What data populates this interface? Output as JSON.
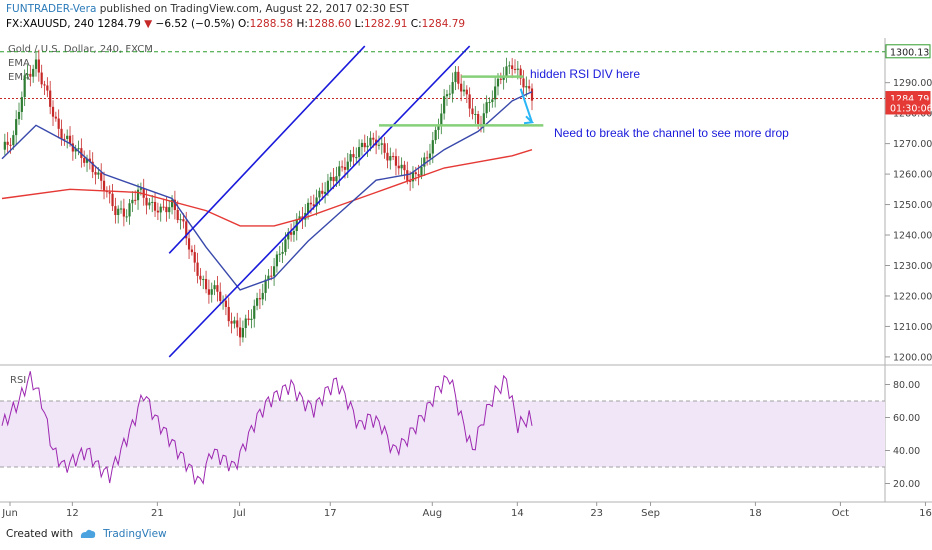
{
  "header": {
    "author": "FUNTRADER-Vera",
    "published_prefix": "published on TradingView.com, August 22, 2017 02:30 EST",
    "symbol": "FX:XAUUSD, 240",
    "last": "1284.79",
    "arrow": "▼",
    "change": "−6.52 (−0.5%)",
    "o_label": "O:",
    "o": "1288.58",
    "h_label": "H:",
    "h": "1288.60",
    "l_label": "L:",
    "l": "1282.91",
    "c_label": "C:",
    "c": "1284.79"
  },
  "legend": {
    "title": "Gold / U.S. Dollar, 240, FXCM",
    "ema1": "EMA",
    "ema2": "EMA",
    "rsi": "RSI"
  },
  "annotations": {
    "hidden_rsi": "hidden RSI DIV here",
    "break_channel": "Need to break the channel to see more drop"
  },
  "price_labels": {
    "high_line": "1300.13",
    "last": "1284.79",
    "countdown": "01:30:06"
  },
  "footer": {
    "created_with": "Created with",
    "brand": "TradingView"
  },
  "colors": {
    "channel": "#1a1adb",
    "ema_fast": "#3949ab",
    "ema_slow": "#e53935",
    "up": "#2e7d32",
    "down": "#c62828",
    "rsi_line": "#9c27b0",
    "rsi_band": "#f1e6f8",
    "annotation": "#1a1adb",
    "level_lines": "#86d07a",
    "drop_arrow": "#29b6f6",
    "high_line": "#2e9e2e",
    "last_label_bg": "#e53935"
  },
  "chart_data": {
    "type": "candlestick",
    "title": "Gold / U.S. Dollar, 240, FXCM",
    "x_ticks": [
      "Jun",
      "12",
      "21",
      "Jul",
      "17",
      "Aug",
      "14",
      "23",
      "Sep",
      "18",
      "Oct",
      "16"
    ],
    "price_axis": {
      "ticks": [
        1200,
        1210,
        1220,
        1230,
        1240,
        1250,
        1260,
        1270,
        1280,
        1290
      ],
      "ylim": [
        1198,
        1304
      ]
    },
    "rsi_axis": {
      "ticks": [
        20,
        40,
        60,
        80
      ],
      "band": [
        30,
        70
      ],
      "ylim": [
        10,
        90
      ]
    },
    "price_path": [
      [
        0,
        1268
      ],
      [
        4,
        1272
      ],
      [
        8,
        1291
      ],
      [
        12,
        1296
      ],
      [
        16,
        1286
      ],
      [
        20,
        1274
      ],
      [
        24,
        1270
      ],
      [
        28,
        1266
      ],
      [
        32,
        1262
      ],
      [
        36,
        1256
      ],
      [
        40,
        1248
      ],
      [
        44,
        1247
      ],
      [
        48,
        1255
      ],
      [
        52,
        1250
      ],
      [
        56,
        1248
      ],
      [
        60,
        1250
      ],
      [
        64,
        1243
      ],
      [
        68,
        1230
      ],
      [
        72,
        1222
      ],
      [
        76,
        1222
      ],
      [
        80,
        1213
      ],
      [
        84,
        1208
      ],
      [
        88,
        1214
      ],
      [
        92,
        1222
      ],
      [
        96,
        1230
      ],
      [
        100,
        1238
      ],
      [
        104,
        1244
      ],
      [
        108,
        1249
      ],
      [
        112,
        1253
      ],
      [
        116,
        1258
      ],
      [
        120,
        1262
      ],
      [
        124,
        1266
      ],
      [
        128,
        1270
      ],
      [
        132,
        1271
      ],
      [
        136,
        1266
      ],
      [
        140,
        1263
      ],
      [
        144,
        1258
      ],
      [
        148,
        1262
      ],
      [
        152,
        1270
      ],
      [
        156,
        1284
      ],
      [
        160,
        1292
      ],
      [
        164,
        1285
      ],
      [
        168,
        1276
      ],
      [
        172,
        1284
      ],
      [
        176,
        1292
      ],
      [
        180,
        1296
      ],
      [
        184,
        1290
      ],
      [
        187,
        1285
      ]
    ],
    "ema_fast": [
      [
        0,
        1265
      ],
      [
        12,
        1276
      ],
      [
        24,
        1270
      ],
      [
        36,
        1260
      ],
      [
        48,
        1256
      ],
      [
        60,
        1252
      ],
      [
        72,
        1236
      ],
      [
        84,
        1222
      ],
      [
        96,
        1226
      ],
      [
        108,
        1238
      ],
      [
        120,
        1248
      ],
      [
        132,
        1258
      ],
      [
        144,
        1260
      ],
      [
        156,
        1268
      ],
      [
        168,
        1274
      ],
      [
        180,
        1284
      ],
      [
        187,
        1287
      ]
    ],
    "ema_slow": [
      [
        0,
        1252
      ],
      [
        24,
        1255
      ],
      [
        48,
        1254
      ],
      [
        72,
        1248
      ],
      [
        84,
        1243
      ],
      [
        96,
        1243
      ],
      [
        108,
        1246
      ],
      [
        120,
        1250
      ],
      [
        132,
        1254
      ],
      [
        144,
        1258
      ],
      [
        156,
        1262
      ],
      [
        168,
        1264
      ],
      [
        180,
        1266
      ],
      [
        187,
        1268
      ]
    ],
    "rsi_path": [
      [
        0,
        55
      ],
      [
        6,
        70
      ],
      [
        10,
        85
      ],
      [
        14,
        70
      ],
      [
        18,
        40
      ],
      [
        22,
        30
      ],
      [
        26,
        35
      ],
      [
        30,
        40
      ],
      [
        34,
        30
      ],
      [
        38,
        25
      ],
      [
        42,
        40
      ],
      [
        46,
        55
      ],
      [
        50,
        75
      ],
      [
        54,
        60
      ],
      [
        58,
        50
      ],
      [
        62,
        40
      ],
      [
        66,
        30
      ],
      [
        70,
        20
      ],
      [
        74,
        40
      ],
      [
        78,
        35
      ],
      [
        82,
        30
      ],
      [
        86,
        45
      ],
      [
        90,
        60
      ],
      [
        94,
        70
      ],
      [
        98,
        75
      ],
      [
        102,
        80
      ],
      [
        106,
        70
      ],
      [
        110,
        65
      ],
      [
        114,
        75
      ],
      [
        118,
        82
      ],
      [
        122,
        70
      ],
      [
        126,
        55
      ],
      [
        130,
        60
      ],
      [
        134,
        55
      ],
      [
        138,
        40
      ],
      [
        142,
        45
      ],
      [
        146,
        55
      ],
      [
        150,
        65
      ],
      [
        154,
        78
      ],
      [
        158,
        85
      ],
      [
        162,
        60
      ],
      [
        166,
        40
      ],
      [
        170,
        60
      ],
      [
        174,
        75
      ],
      [
        178,
        83
      ],
      [
        182,
        55
      ],
      [
        186,
        60
      ],
      [
        187,
        55
      ]
    ],
    "channel": {
      "upper": [
        [
          59,
          1234
        ],
        [
          128,
          1302
        ]
      ],
      "lower": [
        [
          59,
          1200
        ],
        [
          165,
          1302
        ]
      ]
    },
    "level_lines": [
      1276,
      1292
    ],
    "high_line": 1300.13,
    "last_price": 1284.79
  }
}
